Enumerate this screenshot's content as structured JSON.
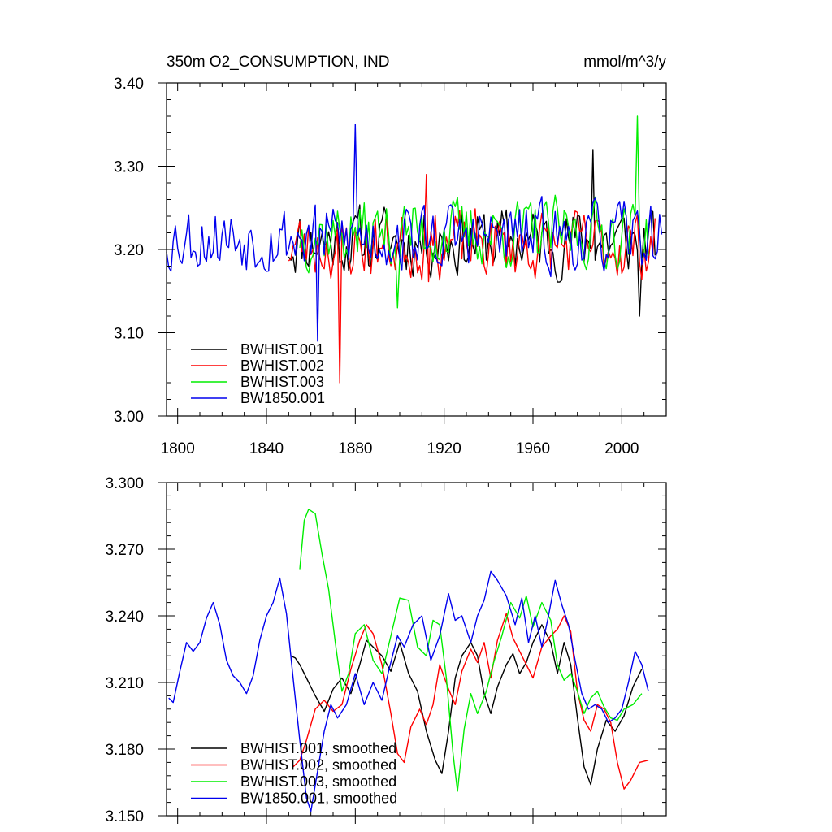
{
  "chart_data": [
    {
      "type": "line",
      "title": "350m O2_CONSUMPTION, IND",
      "units": "mmol/m^3/y",
      "xlim": [
        1795,
        2020
      ],
      "ylim": [
        3.0,
        3.4
      ],
      "xticks": [
        1800,
        1840,
        1880,
        1920,
        1960,
        2000
      ],
      "yticks": [
        3.0,
        3.1,
        3.2,
        3.3,
        3.4
      ],
      "ytick_labels": [
        "3.00",
        "3.10",
        "3.20",
        "3.30",
        "3.40"
      ],
      "legend_position": "bottom-left",
      "grid": false,
      "series": [
        {
          "name": "BWHIST.001",
          "color": "#000000",
          "x_start": 1850,
          "x_end": 2015,
          "mean": 3.21,
          "amplitude": 0.035,
          "min": 3.12,
          "max": 3.32,
          "seed": 11
        },
        {
          "name": "BWHIST.002",
          "color": "#ff0000",
          "x_start": 1850,
          "x_end": 2015,
          "mean": 3.205,
          "amplitude": 0.035,
          "min": 3.04,
          "max": 3.29,
          "seed": 23
        },
        {
          "name": "BWHIST.003",
          "color": "#00ee00",
          "x_start": 1855,
          "x_end": 2012,
          "mean": 3.22,
          "amplitude": 0.035,
          "min": 3.13,
          "max": 3.36,
          "seed": 37
        },
        {
          "name": "BW1850.001",
          "color": "#0000ee",
          "x_start": 1795,
          "x_end": 2018,
          "mean": 3.215,
          "amplitude": 0.035,
          "min": 3.09,
          "max": 3.35,
          "seed": 53
        }
      ]
    },
    {
      "type": "line",
      "xlim": [
        1795,
        2020
      ],
      "ylim": [
        3.15,
        3.3
      ],
      "xticks": [
        1800,
        1840,
        1880,
        1920,
        1960,
        2000
      ],
      "yticks": [
        3.15,
        3.18,
        3.21,
        3.24,
        3.27,
        3.3
      ],
      "ytick_labels": [
        "3.150",
        "3.180",
        "3.210",
        "3.240",
        "3.270",
        "3.300"
      ],
      "legend_position": "bottom-left",
      "grid": false,
      "series": [
        {
          "name": "BWHIST.001, smoothed",
          "color": "#000000",
          "points": [
            [
              1851,
              3.222
            ],
            [
              1853,
              3.221
            ],
            [
              1855,
              3.218
            ],
            [
              1858,
              3.212
            ],
            [
              1862,
              3.204
            ],
            [
              1866,
              3.197
            ],
            [
              1870,
              3.207
            ],
            [
              1874,
              3.212
            ],
            [
              1878,
              3.205
            ],
            [
              1882,
              3.218
            ],
            [
              1885,
              3.229
            ],
            [
              1888,
              3.226
            ],
            [
              1892,
              3.222
            ],
            [
              1896,
              3.215
            ],
            [
              1900,
              3.228
            ],
            [
              1904,
              3.214
            ],
            [
              1908,
              3.206
            ],
            [
              1912,
              3.188
            ],
            [
              1916,
              3.175
            ],
            [
              1919,
              3.169
            ],
            [
              1922,
              3.188
            ],
            [
              1925,
              3.212
            ],
            [
              1928,
              3.222
            ],
            [
              1932,
              3.228
            ],
            [
              1935,
              3.222
            ],
            [
              1938,
              3.205
            ],
            [
              1941,
              3.196
            ],
            [
              1944,
              3.208
            ],
            [
              1948,
              3.218
            ],
            [
              1951,
              3.223
            ],
            [
              1954,
              3.214
            ],
            [
              1957,
              3.219
            ],
            [
              1960,
              3.228
            ],
            [
              1964,
              3.236
            ],
            [
              1968,
              3.228
            ],
            [
              1971,
              3.214
            ],
            [
              1974,
              3.228
            ],
            [
              1977,
              3.218
            ],
            [
              1980,
              3.194
            ],
            [
              1983,
              3.172
            ],
            [
              1986,
              3.164
            ],
            [
              1989,
              3.18
            ],
            [
              1993,
              3.193
            ],
            [
              1997,
              3.188
            ],
            [
              2001,
              3.195
            ],
            [
              2005,
              3.208
            ],
            [
              2009,
              3.216
            ]
          ]
        },
        {
          "name": "BWHIST.002, smoothed",
          "color": "#ff0000",
          "points": [
            [
              1852,
              3.172
            ],
            [
              1855,
              3.175
            ],
            [
              1858,
              3.184
            ],
            [
              1862,
              3.198
            ],
            [
              1866,
              3.202
            ],
            [
              1870,
              3.197
            ],
            [
              1874,
              3.2
            ],
            [
              1878,
              3.216
            ],
            [
              1882,
              3.229
            ],
            [
              1885,
              3.236
            ],
            [
              1888,
              3.232
            ],
            [
              1892,
              3.218
            ],
            [
              1896,
              3.196
            ],
            [
              1899,
              3.178
            ],
            [
              1902,
              3.174
            ],
            [
              1905,
              3.19
            ],
            [
              1909,
              3.198
            ],
            [
              1912,
              3.191
            ],
            [
              1915,
              3.2
            ],
            [
              1918,
              3.218
            ],
            [
              1922,
              3.207
            ],
            [
              1925,
              3.2
            ],
            [
              1928,
              3.215
            ],
            [
              1932,
              3.225
            ],
            [
              1935,
              3.219
            ],
            [
              1938,
              3.228
            ],
            [
              1941,
              3.212
            ],
            [
              1944,
              3.229
            ],
            [
              1948,
              3.241
            ],
            [
              1951,
              3.23
            ],
            [
              1954,
              3.224
            ],
            [
              1957,
              3.218
            ],
            [
              1960,
              3.212
            ],
            [
              1964,
              3.226
            ],
            [
              1968,
              3.231
            ],
            [
              1971,
              3.234
            ],
            [
              1974,
              3.24
            ],
            [
              1977,
              3.233
            ],
            [
              1980,
              3.206
            ],
            [
              1983,
              3.193
            ],
            [
              1986,
              3.188
            ],
            [
              1989,
              3.2
            ],
            [
              1992,
              3.198
            ],
            [
              1995,
              3.192
            ],
            [
              1998,
              3.174
            ],
            [
              2001,
              3.162
            ],
            [
              2004,
              3.166
            ],
            [
              2008,
              3.174
            ],
            [
              2012,
              3.175
            ]
          ]
        },
        {
          "name": "BWHIST.003, smoothed",
          "color": "#00ee00",
          "points": [
            [
              1855,
              3.261
            ],
            [
              1857,
              3.283
            ],
            [
              1859,
              3.288
            ],
            [
              1862,
              3.286
            ],
            [
              1865,
              3.268
            ],
            [
              1868,
              3.252
            ],
            [
              1871,
              3.228
            ],
            [
              1874,
              3.206
            ],
            [
              1877,
              3.214
            ],
            [
              1880,
              3.232
            ],
            [
              1884,
              3.236
            ],
            [
              1888,
              3.22
            ],
            [
              1892,
              3.214
            ],
            [
              1896,
              3.231
            ],
            [
              1900,
              3.248
            ],
            [
              1904,
              3.247
            ],
            [
              1908,
              3.226
            ],
            [
              1912,
              3.222
            ],
            [
              1915,
              3.238
            ],
            [
              1918,
              3.236
            ],
            [
              1921,
              3.212
            ],
            [
              1924,
              3.178
            ],
            [
              1926,
              3.161
            ],
            [
              1929,
              3.189
            ],
            [
              1932,
              3.205
            ],
            [
              1935,
              3.196
            ],
            [
              1939,
              3.206
            ],
            [
              1942,
              3.218
            ],
            [
              1946,
              3.231
            ],
            [
              1950,
              3.246
            ],
            [
              1954,
              3.239
            ],
            [
              1957,
              3.249
            ],
            [
              1960,
              3.235
            ],
            [
              1964,
              3.246
            ],
            [
              1968,
              3.238
            ],
            [
              1971,
              3.218
            ],
            [
              1974,
              3.211
            ],
            [
              1977,
              3.214
            ],
            [
              1980,
              3.206
            ],
            [
              1983,
              3.196
            ],
            [
              1986,
              3.203
            ],
            [
              1989,
              3.206
            ],
            [
              1992,
              3.199
            ],
            [
              1995,
              3.194
            ],
            [
              1998,
              3.193
            ],
            [
              2001,
              3.198
            ],
            [
              2005,
              3.2
            ],
            [
              2009,
              3.205
            ]
          ]
        },
        {
          "name": "BW1850.001, smoothed",
          "color": "#0000ee",
          "points": [
            [
              1796,
              3.203
            ],
            [
              1798,
              3.201
            ],
            [
              1801,
              3.215
            ],
            [
              1804,
              3.228
            ],
            [
              1807,
              3.224
            ],
            [
              1810,
              3.228
            ],
            [
              1813,
              3.239
            ],
            [
              1816,
              3.246
            ],
            [
              1819,
              3.236
            ],
            [
              1822,
              3.22
            ],
            [
              1825,
              3.213
            ],
            [
              1828,
              3.21
            ],
            [
              1831,
              3.205
            ],
            [
              1834,
              3.213
            ],
            [
              1837,
              3.229
            ],
            [
              1840,
              3.24
            ],
            [
              1843,
              3.246
            ],
            [
              1846,
              3.257
            ],
            [
              1849,
              3.241
            ],
            [
              1852,
              3.212
            ],
            [
              1855,
              3.184
            ],
            [
              1858,
              3.158
            ],
            [
              1860,
              3.152
            ],
            [
              1863,
              3.17
            ],
            [
              1866,
              3.188
            ],
            [
              1869,
              3.2
            ],
            [
              1872,
              3.194
            ],
            [
              1876,
              3.2
            ],
            [
              1880,
              3.214
            ],
            [
              1884,
              3.2
            ],
            [
              1888,
              3.21
            ],
            [
              1892,
              3.202
            ],
            [
              1895,
              3.215
            ],
            [
              1899,
              3.231
            ],
            [
              1902,
              3.226
            ],
            [
              1906,
              3.236
            ],
            [
              1910,
              3.24
            ],
            [
              1914,
              3.22
            ],
            [
              1918,
              3.231
            ],
            [
              1922,
              3.25
            ],
            [
              1925,
              3.238
            ],
            [
              1928,
              3.24
            ],
            [
              1932,
              3.228
            ],
            [
              1935,
              3.24
            ],
            [
              1938,
              3.247
            ],
            [
              1941,
              3.26
            ],
            [
              1944,
              3.256
            ],
            [
              1948,
              3.249
            ],
            [
              1952,
              3.236
            ],
            [
              1955,
              3.248
            ],
            [
              1958,
              3.228
            ],
            [
              1961,
              3.24
            ],
            [
              1964,
              3.226
            ],
            [
              1967,
              3.24
            ],
            [
              1970,
              3.256
            ],
            [
              1973,
              3.245
            ],
            [
              1976,
              3.236
            ],
            [
              1979,
              3.22
            ],
            [
              1982,
              3.205
            ],
            [
              1985,
              3.198
            ],
            [
              1988,
              3.2
            ],
            [
              1991,
              3.198
            ],
            [
              1994,
              3.192
            ],
            [
              1997,
              3.194
            ],
            [
              2000,
              3.198
            ],
            [
              2003,
              3.21
            ],
            [
              2006,
              3.224
            ],
            [
              2009,
              3.218
            ],
            [
              2012,
              3.206
            ]
          ]
        }
      ]
    }
  ]
}
